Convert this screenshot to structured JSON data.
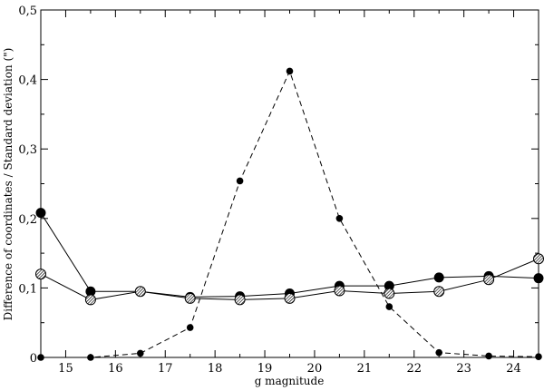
{
  "chart_data": {
    "type": "line",
    "title": "",
    "xlabel": "g magnitude",
    "ylabel": "Difference of coordinates / Standard deviation (\")",
    "xlim": [
      14.5,
      24.5
    ],
    "ylim": [
      0,
      0.5
    ],
    "x_ticks": [
      "15",
      "16",
      "17",
      "18",
      "19",
      "20",
      "21",
      "22",
      "23",
      "24"
    ],
    "y_ticks": [
      "0",
      "0,1",
      "0,2",
      "0,3",
      "0,4",
      "0,5"
    ],
    "grid": false,
    "legend": "none",
    "x": [
      14.5,
      15.5,
      16.5,
      17.5,
      18.5,
      19.5,
      20.5,
      21.5,
      22.5,
      23.5,
      24.5
    ],
    "series": [
      {
        "marker": "large-filled-circle",
        "line": "solid",
        "values": [
          0.208,
          0.095,
          0.095,
          0.087,
          0.088,
          0.092,
          0.103,
          0.103,
          0.115,
          0.117,
          0.114
        ]
      },
      {
        "marker": "hatched-circle",
        "line": "solid",
        "values": [
          0.12,
          0.083,
          0.095,
          0.085,
          0.083,
          0.085,
          0.096,
          0.092,
          0.095,
          0.112,
          0.142
        ]
      },
      {
        "marker": "small-filled-circle",
        "line": "dashed",
        "values": [
          0.0,
          0.0,
          0.006,
          0.043,
          0.254,
          0.412,
          0.2,
          0.073,
          0.007,
          0.002,
          0.001
        ]
      }
    ]
  }
}
